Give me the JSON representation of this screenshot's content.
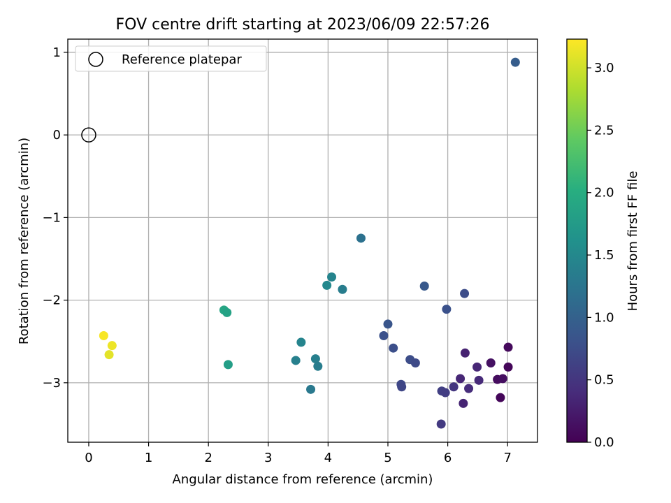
{
  "chart_data": {
    "type": "scatter",
    "title": "FOV centre drift starting at 2023/06/09 22:57:26",
    "xlabel": "Angular distance from reference (arcmin)",
    "ylabel": "Rotation from reference (arcmin)",
    "xlim": [
      -0.35,
      7.5
    ],
    "ylim": [
      -3.72,
      1.16
    ],
    "xticks": [
      0,
      1,
      2,
      3,
      4,
      5,
      6,
      7
    ],
    "yticks": [
      1,
      0,
      -1,
      -2,
      -3
    ],
    "ytick_labels": [
      "1",
      "0",
      "−1",
      "−2",
      "−3"
    ],
    "grid": true,
    "legend": {
      "placement": "top-left",
      "entries": [
        "Reference platepar"
      ]
    },
    "reference_point": {
      "x": 0,
      "y": 0
    },
    "colorbar": {
      "label": "Hours from first FF file",
      "range": [
        0,
        3.23
      ],
      "ticks": [
        0.0,
        0.5,
        1.0,
        1.5,
        2.0,
        2.5,
        3.0
      ],
      "tick_labels": [
        "0.0",
        "0.5",
        "1.0",
        "1.5",
        "2.0",
        "2.5",
        "3.0"
      ],
      "colormap": "viridis"
    },
    "points": [
      {
        "x": 0.25,
        "y": -2.43,
        "c": 3.2
      },
      {
        "x": 0.39,
        "y": -2.55,
        "c": 3.15
      },
      {
        "x": 0.34,
        "y": -2.66,
        "c": 3.1
      },
      {
        "x": 2.26,
        "y": -2.12,
        "c": 1.9
      },
      {
        "x": 2.31,
        "y": -2.15,
        "c": 1.85
      },
      {
        "x": 2.33,
        "y": -2.78,
        "c": 1.8
      },
      {
        "x": 3.55,
        "y": -2.51,
        "c": 1.45
      },
      {
        "x": 3.46,
        "y": -2.73,
        "c": 1.4
      },
      {
        "x": 3.79,
        "y": -2.71,
        "c": 1.38
      },
      {
        "x": 3.83,
        "y": -2.8,
        "c": 1.35
      },
      {
        "x": 3.71,
        "y": -3.08,
        "c": 1.3
      },
      {
        "x": 3.98,
        "y": -1.82,
        "c": 1.5
      },
      {
        "x": 4.06,
        "y": -1.72,
        "c": 1.45
      },
      {
        "x": 4.24,
        "y": -1.87,
        "c": 1.35
      },
      {
        "x": 4.55,
        "y": -1.25,
        "c": 1.2
      },
      {
        "x": 5.0,
        "y": -2.29,
        "c": 0.85
      },
      {
        "x": 4.93,
        "y": -2.43,
        "c": 0.8
      },
      {
        "x": 5.09,
        "y": -2.58,
        "c": 0.78
      },
      {
        "x": 5.37,
        "y": -2.72,
        "c": 0.75
      },
      {
        "x": 5.46,
        "y": -2.76,
        "c": 0.72
      },
      {
        "x": 5.22,
        "y": -3.02,
        "c": 0.7
      },
      {
        "x": 5.23,
        "y": -3.05,
        "c": 0.68
      },
      {
        "x": 5.61,
        "y": -1.83,
        "c": 0.9
      },
      {
        "x": 5.98,
        "y": -2.11,
        "c": 0.8
      },
      {
        "x": 6.28,
        "y": -1.92,
        "c": 0.75
      },
      {
        "x": 7.13,
        "y": 0.88,
        "c": 0.95
      },
      {
        "x": 5.9,
        "y": -3.1,
        "c": 0.6
      },
      {
        "x": 5.96,
        "y": -3.12,
        "c": 0.58
      },
      {
        "x": 6.1,
        "y": -3.05,
        "c": 0.5
      },
      {
        "x": 5.89,
        "y": -3.5,
        "c": 0.55
      },
      {
        "x": 6.21,
        "y": -2.95,
        "c": 0.35
      },
      {
        "x": 6.29,
        "y": -2.64,
        "c": 0.3
      },
      {
        "x": 6.26,
        "y": -3.25,
        "c": 0.32
      },
      {
        "x": 6.35,
        "y": -3.07,
        "c": 0.4
      },
      {
        "x": 6.49,
        "y": -2.81,
        "c": 0.35
      },
      {
        "x": 6.52,
        "y": -2.97,
        "c": 0.38
      },
      {
        "x": 6.72,
        "y": -2.76,
        "c": 0.15
      },
      {
        "x": 6.83,
        "y": -2.96,
        "c": 0.1
      },
      {
        "x": 6.92,
        "y": -2.95,
        "c": 0.12
      },
      {
        "x": 6.88,
        "y": -3.18,
        "c": 0.05
      },
      {
        "x": 7.01,
        "y": -2.57,
        "c": 0.08
      },
      {
        "x": 7.01,
        "y": -2.81,
        "c": 0.05
      }
    ]
  }
}
